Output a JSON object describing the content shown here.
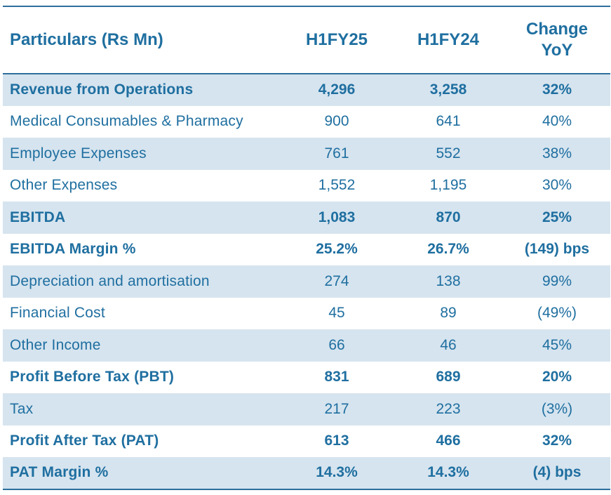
{
  "header": {
    "particulars": "Particulars (Rs Mn)",
    "col1": "H1FY25",
    "col2": "H1FY24",
    "change_line1": "Change",
    "change_line2": "YoY"
  },
  "rows": [
    {
      "label": "Revenue from Operations",
      "h1fy25": "4,296",
      "h1fy24": "3,258",
      "change": "32%",
      "bold": true,
      "shaded": true
    },
    {
      "label": "Medical Consumables & Pharmacy",
      "h1fy25": "900",
      "h1fy24": "641",
      "change": "40%",
      "bold": false,
      "shaded": false
    },
    {
      "label": "Employee Expenses",
      "h1fy25": "761",
      "h1fy24": "552",
      "change": "38%",
      "bold": false,
      "shaded": true
    },
    {
      "label": "Other Expenses",
      "h1fy25": "1,552",
      "h1fy24": "1,195",
      "change": "30%",
      "bold": false,
      "shaded": false
    },
    {
      "label": "EBITDA",
      "h1fy25": "1,083",
      "h1fy24": "870",
      "change": "25%",
      "bold": true,
      "shaded": true
    },
    {
      "label": "EBITDA Margin %",
      "h1fy25": "25.2%",
      "h1fy24": "26.7%",
      "change": "(149) bps",
      "bold": true,
      "shaded": false
    },
    {
      "label": "Depreciation and amortisation",
      "h1fy25": "274",
      "h1fy24": "138",
      "change": "99%",
      "bold": false,
      "shaded": true
    },
    {
      "label": "Financial Cost",
      "h1fy25": "45",
      "h1fy24": "89",
      "change": "(49%)",
      "bold": false,
      "shaded": false
    },
    {
      "label": "Other Income",
      "h1fy25": "66",
      "h1fy24": "46",
      "change": "45%",
      "bold": false,
      "shaded": true
    },
    {
      "label": "Profit Before Tax (PBT)",
      "h1fy25": "831",
      "h1fy24": "689",
      "change": "20%",
      "bold": true,
      "shaded": false
    },
    {
      "label": "Tax",
      "h1fy25": "217",
      "h1fy24": "223",
      "change": "(3%)",
      "bold": false,
      "shaded": true
    },
    {
      "label": "Profit After Tax (PAT)",
      "h1fy25": "613",
      "h1fy24": "466",
      "change": "32%",
      "bold": true,
      "shaded": false
    },
    {
      "label": "PAT Margin %",
      "h1fy25": "14.3%",
      "h1fy24": "14.3%",
      "change": "(4) bps",
      "bold": true,
      "shaded": true
    }
  ],
  "colors": {
    "text": "#1f6fa0",
    "row_shade": "#d6e4ef",
    "rule": "#2d6f9c"
  }
}
